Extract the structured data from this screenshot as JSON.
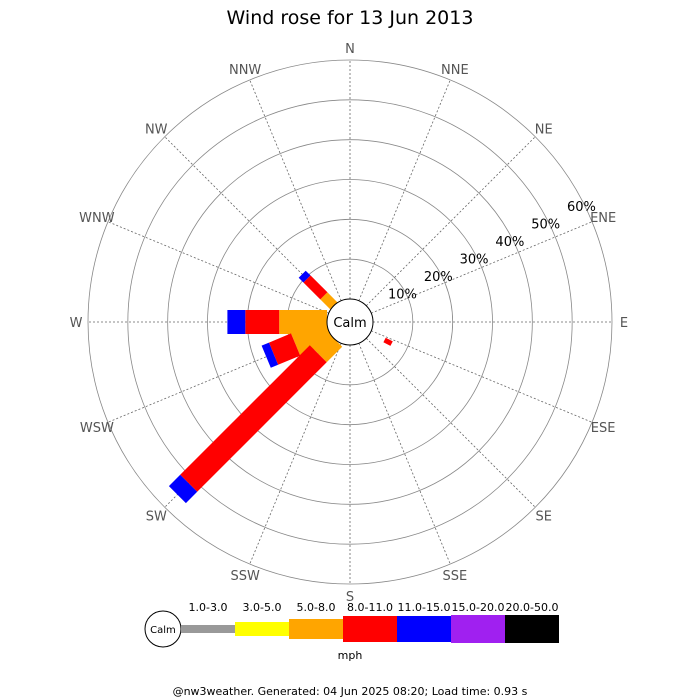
{
  "chart_data": {
    "type": "wind-rose",
    "title": "Wind rose for 13 Jun 2013",
    "directions": [
      "N",
      "NNE",
      "NE",
      "ENE",
      "E",
      "ESE",
      "SE",
      "SSE",
      "S",
      "SSW",
      "SW",
      "WSW",
      "W",
      "WNW",
      "NW",
      "NNW"
    ],
    "ring_labels": [
      "10%",
      "20%",
      "30%",
      "40%",
      "50%",
      "60%"
    ],
    "ring_values": [
      10,
      20,
      30,
      40,
      50,
      60
    ],
    "rmax": 60,
    "calm_label": "Calm",
    "speed_bins": [
      {
        "label": "1.0-3.0",
        "color": "#999999"
      },
      {
        "label": "3.0-5.0",
        "color": "#ffff00"
      },
      {
        "label": "5.0-8.0",
        "color": "#ffa500"
      },
      {
        "label": "8.0-11.0",
        "color": "#ff0000"
      },
      {
        "label": "11.0-15.0",
        "color": "#0000ff"
      },
      {
        "label": "15.0-20.0",
        "color": "#a020f0"
      },
      {
        "label": "20.0-50.0",
        "color": "#000000"
      }
    ],
    "unit": "mph",
    "sectors": [
      {
        "direction": "NW",
        "cumulative": [
          0,
          0,
          3.5,
          9.5,
          11.2,
          11.2,
          11.2
        ]
      },
      {
        "direction": "WNW",
        "cumulative": [
          0,
          0,
          0,
          0,
          0,
          0,
          0
        ]
      },
      {
        "direction": "W",
        "cumulative": [
          0,
          0,
          12.0,
          20.5,
          25.0,
          25.0,
          25.0
        ]
      },
      {
        "direction": "WSW",
        "cumulative": [
          0,
          0,
          9.0,
          15.0,
          17.0,
          17.0,
          17.0
        ]
      },
      {
        "direction": "SW",
        "cumulative": [
          0,
          0,
          5.5,
          51.5,
          55.5,
          55.5,
          55.5
        ]
      },
      {
        "direction": "SSW",
        "cumulative": [
          0,
          0,
          0,
          0,
          0,
          0,
          0
        ]
      },
      {
        "direction": "SSE",
        "cumulative": [
          0,
          0,
          0,
          0,
          0,
          0,
          0
        ]
      },
      {
        "direction": "S",
        "cumulative": [
          0,
          0,
          0,
          0,
          0,
          0,
          0
        ]
      },
      {
        "direction": "SW-narrow",
        "cumulative": [
          0,
          0,
          0,
          0,
          0,
          0,
          0
        ]
      }
    ],
    "narrow_spoke": {
      "direction_deg": 247.5,
      "from": 4.0,
      "to": 6.0,
      "color": "#ff0000"
    }
  },
  "footer": "@nw3weather. Generated: 04 Jun 2025 08:20; Load time: 0.93 s"
}
